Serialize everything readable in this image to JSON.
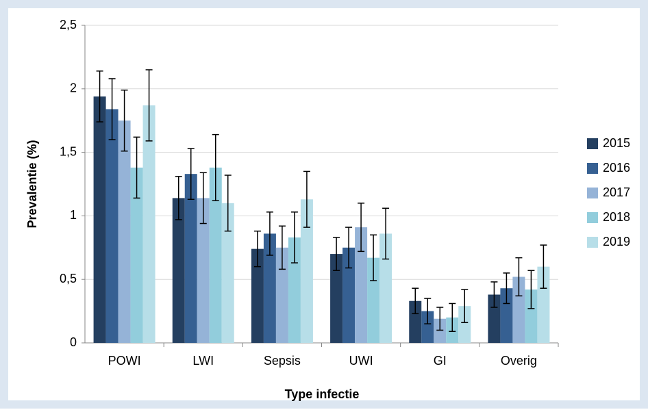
{
  "chart_data": {
    "type": "bar",
    "x_label": "Type infectie",
    "y_label": "Prevalentie (%)",
    "categories": [
      "POWI",
      "LWI",
      "Sepsis",
      "UWI",
      "GI",
      "Overig"
    ],
    "ylim": [
      0,
      2.5
    ],
    "yticks": [
      0,
      {
        "value": 0.5,
        "label": "0,5"
      },
      1,
      {
        "value": 1.5,
        "label": "1,5"
      },
      2,
      {
        "value": 2.5,
        "label": "2,5"
      }
    ],
    "grid": true,
    "legend": "right",
    "series": [
      {
        "name": "2015",
        "color": "#243f60",
        "values": [
          1.94,
          1.14,
          0.74,
          0.7,
          0.33,
          0.38
        ],
        "errors": [
          0.2,
          0.17,
          0.14,
          0.13,
          0.1,
          0.1
        ]
      },
      {
        "name": "2016",
        "color": "#366092",
        "values": [
          1.84,
          1.33,
          0.86,
          0.75,
          0.25,
          0.43
        ],
        "errors": [
          0.24,
          0.2,
          0.17,
          0.16,
          0.1,
          0.12
        ]
      },
      {
        "name": "2017",
        "color": "#95b3d7",
        "values": [
          1.75,
          1.14,
          0.75,
          0.91,
          0.19,
          0.52
        ],
        "errors": [
          0.24,
          0.2,
          0.17,
          0.19,
          0.09,
          0.15
        ]
      },
      {
        "name": "2018",
        "color": "#92cddc",
        "values": [
          1.38,
          1.38,
          0.83,
          0.67,
          0.2,
          0.42
        ],
        "errors": [
          0.24,
          0.26,
          0.2,
          0.18,
          0.11,
          0.15
        ]
      },
      {
        "name": "2019",
        "color": "#b7dee8",
        "values": [
          1.87,
          1.1,
          1.13,
          0.86,
          0.29,
          0.6
        ],
        "errors": [
          0.28,
          0.22,
          0.22,
          0.2,
          0.13,
          0.17
        ]
      }
    ]
  }
}
